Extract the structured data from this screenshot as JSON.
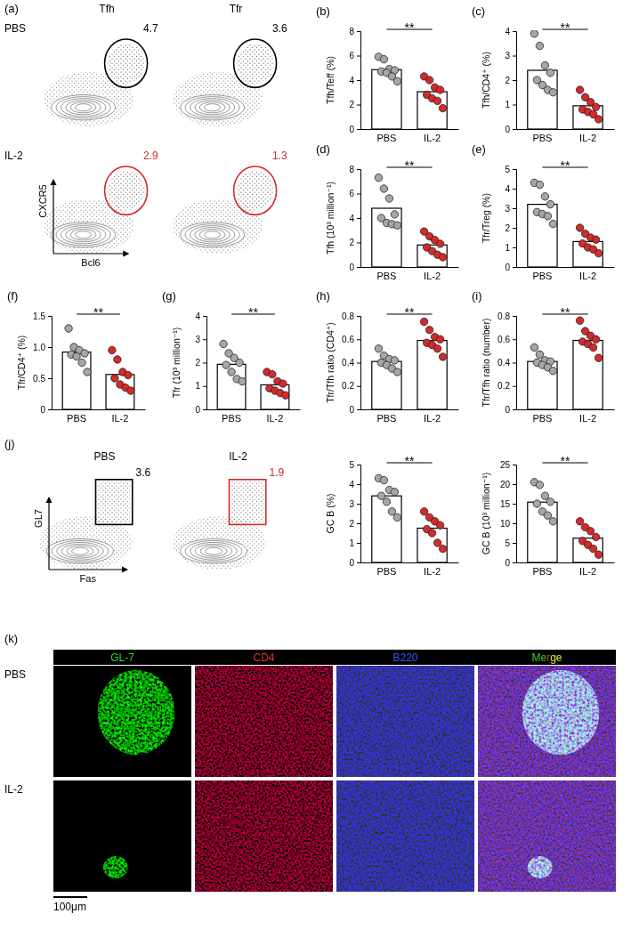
{
  "chart_data": [
    {
      "type": "bar",
      "panel_label": "(b)",
      "y_label": "Tfh/Teff (%)",
      "categories": [
        "PBS",
        "IL-2"
      ],
      "values": [
        4.85,
        3.05
      ],
      "colors": [
        "#a6a6a6",
        "#d42a2a"
      ],
      "points": [
        [
          5.9,
          5.7,
          4.9,
          4.8,
          4.7,
          4.6,
          4.3,
          3.9
        ],
        [
          4.3,
          4.0,
          3.4,
          3.2,
          2.8,
          2.5,
          2.3,
          1.7
        ]
      ],
      "ylim": [
        0,
        8
      ],
      "yticks": [
        0,
        2,
        4,
        6,
        8
      ],
      "annotation": "**"
    },
    {
      "type": "bar",
      "panel_label": "(c)",
      "y_label": "Tfh/CD4⁺ (%)",
      "categories": [
        "PBS",
        "IL-2"
      ],
      "values": [
        2.4,
        0.95
      ],
      "colors": [
        "#a6a6a6",
        "#d42a2a"
      ],
      "points": [
        [
          3.9,
          3.4,
          2.6,
          2.3,
          2.0,
          1.8,
          1.6,
          1.5
        ],
        [
          1.6,
          1.3,
          1.1,
          0.9,
          0.8,
          0.7,
          0.6,
          0.4
        ]
      ],
      "ylim": [
        0,
        4
      ],
      "yticks": [
        0,
        1,
        2,
        3,
        4
      ],
      "annotation": "**"
    },
    {
      "type": "bar",
      "panel_label": "(d)",
      "y_label": "Tfh (10³ million⁻¹)",
      "categories": [
        "PBS",
        "IL-2"
      ],
      "values": [
        4.8,
        1.8
      ],
      "colors": [
        "#a6a6a6",
        "#d42a2a"
      ],
      "points": [
        [
          7.3,
          6.4,
          5.6,
          4.3,
          4.0,
          3.6,
          3.5,
          3.4
        ],
        [
          2.9,
          2.5,
          2.2,
          1.9,
          1.6,
          1.3,
          1.0,
          0.8
        ]
      ],
      "ylim": [
        0,
        8
      ],
      "yticks": [
        0,
        2,
        4,
        6,
        8
      ],
      "annotation": "**"
    },
    {
      "type": "bar",
      "panel_label": "(e)",
      "y_label": "Tfr/Treg (%)",
      "categories": [
        "PBS",
        "IL-2"
      ],
      "values": [
        3.2,
        1.3
      ],
      "colors": [
        "#a6a6a6",
        "#d42a2a"
      ],
      "points": [
        [
          4.3,
          4.2,
          3.6,
          3.2,
          2.8,
          2.7,
          2.6,
          2.2
        ],
        [
          2.0,
          1.7,
          1.5,
          1.4,
          1.2,
          1.0,
          0.9,
          0.7
        ]
      ],
      "ylim": [
        0,
        5
      ],
      "yticks": [
        0,
        1,
        2,
        3,
        4,
        5
      ],
      "annotation": "**"
    },
    {
      "type": "bar",
      "panel_label": "(f)",
      "y_label": "Tfr/CD4⁺ (%)",
      "categories": [
        "PBS",
        "IL-2"
      ],
      "values": [
        0.92,
        0.56
      ],
      "colors": [
        "#a6a6a6",
        "#d42a2a"
      ],
      "points": [
        [
          1.3,
          1.0,
          0.95,
          0.9,
          0.88,
          0.85,
          0.75,
          0.6
        ],
        [
          0.95,
          0.8,
          0.6,
          0.55,
          0.5,
          0.4,
          0.35,
          0.3
        ]
      ],
      "ylim": [
        0,
        1.5
      ],
      "yticks": [
        0,
        0.5,
        {
          "value": 1,
          "label": "1.0"
        },
        1.5
      ],
      "annotation": "**"
    },
    {
      "type": "bar",
      "panel_label": "(g)",
      "y_label": "Tfr (10³ million⁻¹)",
      "categories": [
        "PBS",
        "IL-2"
      ],
      "values": [
        1.93,
        1.05
      ],
      "colors": [
        "#a6a6a6",
        "#d42a2a"
      ],
      "points": [
        [
          2.8,
          2.4,
          2.2,
          2.0,
          1.9,
          1.6,
          1.3,
          1.2
        ],
        [
          1.6,
          1.5,
          1.2,
          1.1,
          0.9,
          0.8,
          0.7,
          0.6
        ]
      ],
      "ylim": [
        0,
        4
      ],
      "yticks": [
        0,
        1,
        2,
        3,
        4
      ],
      "annotation": "**"
    },
    {
      "type": "bar",
      "panel_label": "(h)",
      "y_label": "Tfr/Tfh ratio (CD4⁺)",
      "categories": [
        "PBS",
        "IL-2"
      ],
      "values": [
        0.41,
        0.59
      ],
      "colors": [
        "#a6a6a6",
        "#d42a2a"
      ],
      "points": [
        [
          0.52,
          0.46,
          0.43,
          0.42,
          0.4,
          0.38,
          0.35,
          0.32
        ],
        [
          0.75,
          0.68,
          0.62,
          0.6,
          0.57,
          0.55,
          0.52,
          0.45
        ]
      ],
      "ylim": [
        0,
        0.8
      ],
      "yticks": [
        0,
        0.2,
        0.4,
        0.6,
        0.8
      ],
      "annotation": "**"
    },
    {
      "type": "bar",
      "panel_label": "(i)",
      "y_label": "Tfr/Tfh ratio (number)",
      "categories": [
        "PBS",
        "IL-2"
      ],
      "values": [
        0.41,
        0.59
      ],
      "colors": [
        "#a6a6a6",
        "#d42a2a"
      ],
      "points": [
        [
          0.53,
          0.47,
          0.42,
          0.41,
          0.4,
          0.38,
          0.36,
          0.33
        ],
        [
          0.76,
          0.67,
          0.63,
          0.6,
          0.58,
          0.56,
          0.53,
          0.44
        ]
      ],
      "ylim": [
        0,
        0.8
      ],
      "yticks": [
        0,
        0.2,
        0.4,
        0.6,
        0.8
      ],
      "annotation": "**"
    },
    {
      "type": "bar",
      "y_label": "GC B (%)",
      "categories": [
        "PBS",
        "IL-2"
      ],
      "values": [
        3.4,
        1.75
      ],
      "colors": [
        "#a6a6a6",
        "#d42a2a"
      ],
      "points": [
        [
          4.3,
          4.2,
          3.7,
          3.6,
          3.4,
          3.1,
          2.6,
          2.3
        ],
        [
          2.6,
          2.3,
          2.1,
          1.9,
          1.7,
          1.5,
          1.0,
          0.7
        ]
      ],
      "ylim": [
        0,
        5
      ],
      "yticks": [
        0,
        1,
        2,
        3,
        4,
        5
      ],
      "annotation": "**"
    },
    {
      "type": "bar",
      "y_label": "GC B (10³ million⁻¹)",
      "categories": [
        "PBS",
        "IL-2"
      ],
      "values": [
        15.4,
        6.2
      ],
      "colors": [
        "#a6a6a6",
        "#d42a2a"
      ],
      "points": [
        [
          20.5,
          19.8,
          17,
          15.5,
          15,
          13,
          12,
          10.5
        ],
        [
          10.5,
          9,
          8,
          6.5,
          5.5,
          4.5,
          3.5,
          2
        ]
      ],
      "ylim": [
        0,
        25
      ],
      "yticks": [
        0,
        5,
        10,
        15,
        20,
        25
      ],
      "annotation": "**"
    }
  ],
  "flow_plots": [
    {
      "panel_label": "(a)",
      "row_labels": [
        "PBS",
        "IL-2"
      ],
      "column_labels": [
        "Tfh",
        "Tfr"
      ],
      "x_label": "Bcl6",
      "y_label": "CXCR5",
      "gates": [
        [
          4.7,
          3.6
        ],
        [
          2.9,
          1.3
        ]
      ]
    },
    {
      "panel_label": "(j)",
      "column_labels": [
        "PBS",
        "IL-2"
      ],
      "x_label": "Fas",
      "y_label": "GL7",
      "gates": [
        3.6,
        1.9
      ]
    }
  ],
  "micrograph": {
    "panel_label": "(k)",
    "channels": [
      "GL-7",
      "CD4",
      "B220",
      "Merge"
    ],
    "row_labels": [
      "PBS",
      "IL-2"
    ],
    "scale_bar": "100μm"
  }
}
